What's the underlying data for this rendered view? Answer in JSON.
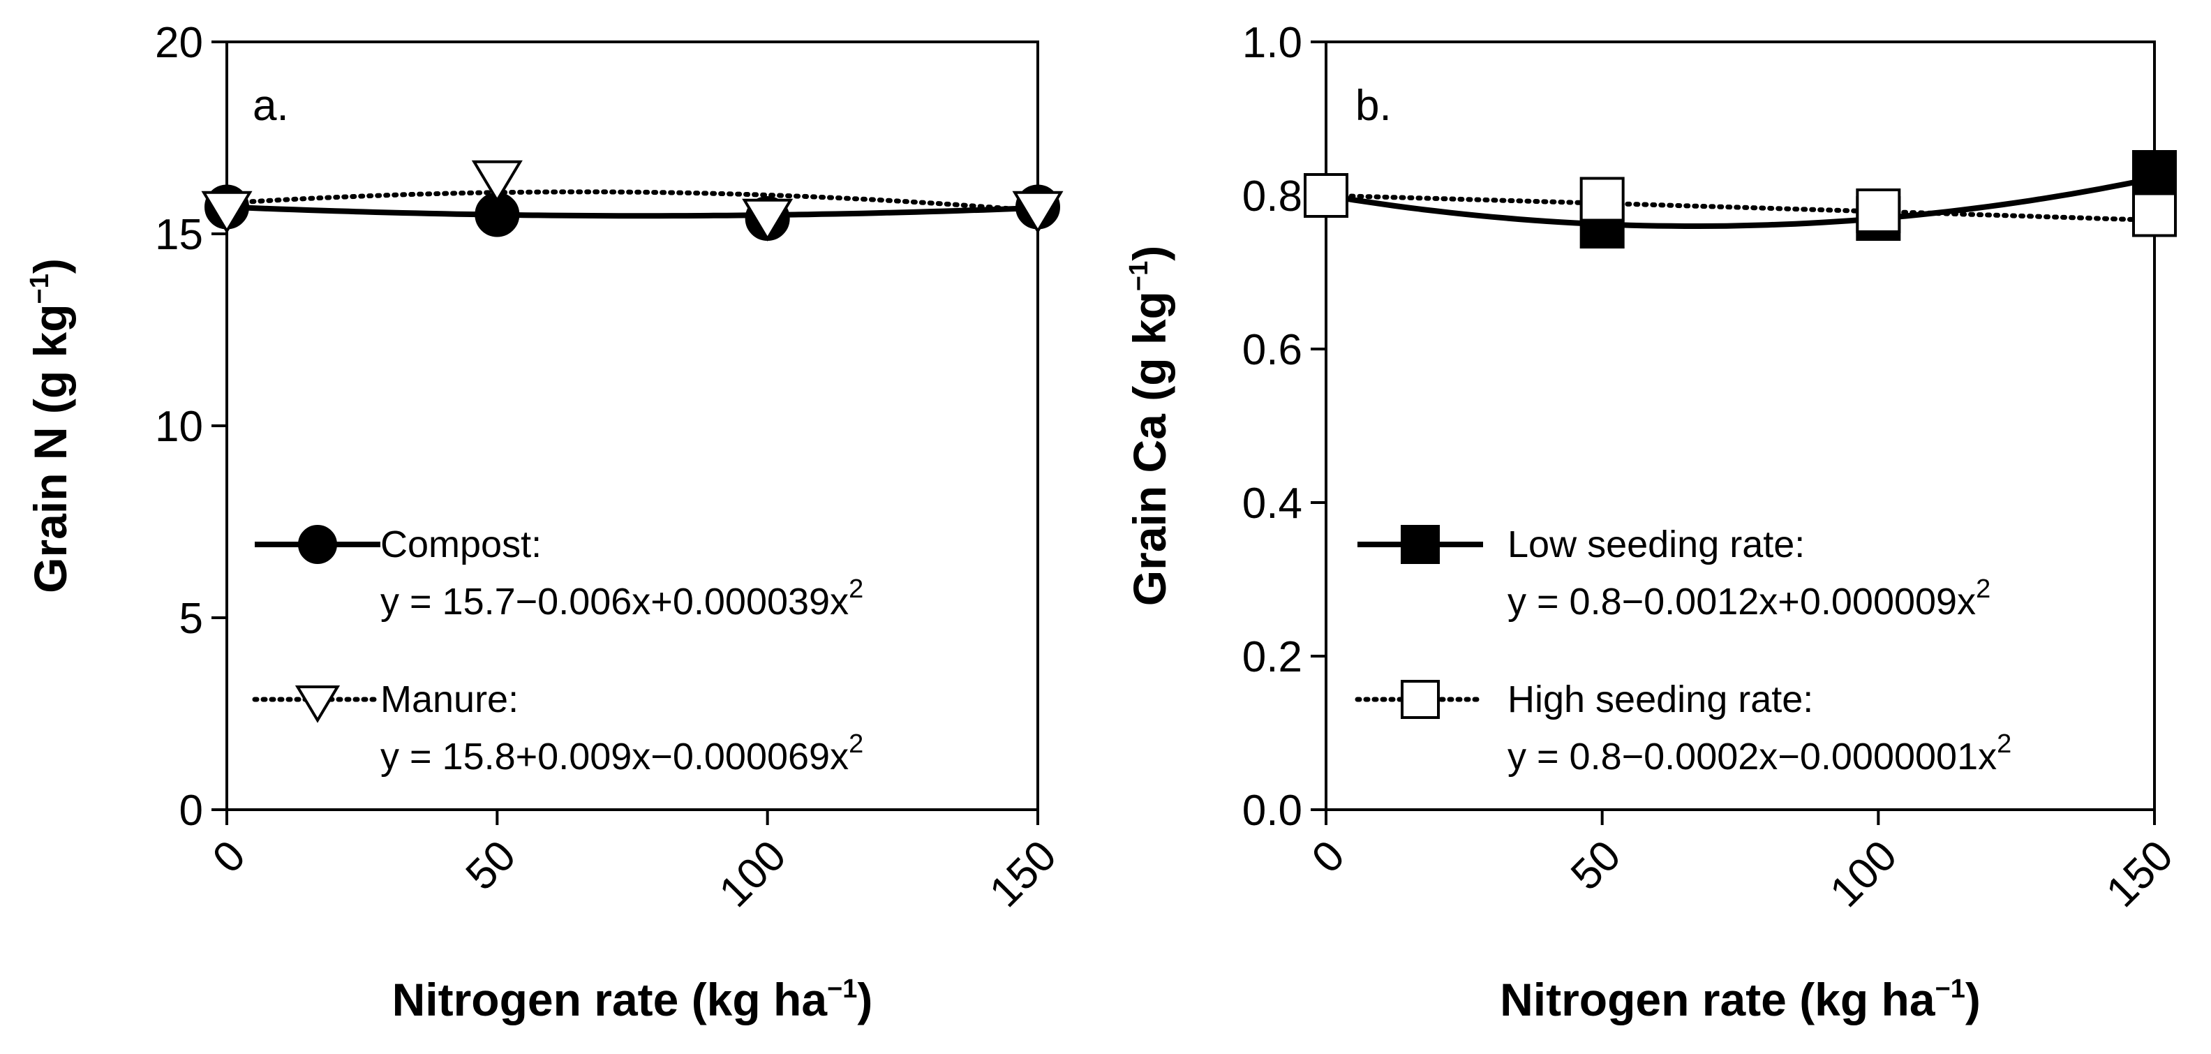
{
  "chart_data": [
    {
      "type": "line",
      "panel_label": "a.",
      "ylabel_main": "Grain N (g kg",
      "ylabel_sup": "−1",
      "ylabel_close": ")",
      "xlabel_main": "Nitrogen rate (kg ha",
      "xlabel_sup": "−1",
      "xlabel_close": ")",
      "xlim": [
        0,
        150
      ],
      "ylim": [
        0,
        20
      ],
      "xticks": [
        "0",
        "50",
        "100",
        "150"
      ],
      "yticks": [
        "0",
        "5",
        "10",
        "15",
        "20"
      ],
      "x": [
        0,
        50,
        100,
        150
      ],
      "series": [
        {
          "name": "Compost:",
          "equation": "y = 15.7−0.006x+0.000039x",
          "equation_sup": "2",
          "values": [
            15.7,
            15.5,
            15.4,
            15.7
          ],
          "fit": [
            15.7,
            -0.006,
            3.9e-05
          ],
          "marker": "circle",
          "filled": true,
          "line_style": "solid"
        },
        {
          "name": "Manure:",
          "equation": "y = 15.8+0.009x−0.000069x",
          "equation_sup": "2",
          "values": [
            15.7,
            16.5,
            15.5,
            15.7
          ],
          "fit": [
            15.8,
            0.009,
            -6.9e-05
          ],
          "marker": "triangle-down",
          "filled": false,
          "line_style": "dotted"
        }
      ],
      "legend_position": "lower-left"
    },
    {
      "type": "line",
      "panel_label": "b.",
      "ylabel_main": "Grain Ca (g kg",
      "ylabel_sup": "−1",
      "ylabel_close": ")",
      "xlabel_main": "Nitrogen rate (kg ha",
      "xlabel_sup": "−1",
      "xlabel_close": ")",
      "xlim": [
        0,
        150
      ],
      "ylim": [
        0,
        1.0
      ],
      "xticks": [
        "0",
        "50",
        "100",
        "150"
      ],
      "yticks": [
        "0.0",
        "0.2",
        "0.4",
        "0.6",
        "0.8",
        "1.0"
      ],
      "x": [
        0,
        50,
        100,
        150
      ],
      "series": [
        {
          "name": "Low seeding rate:",
          "equation": "y = 0.8−0.0012x+0.000009x",
          "equation_sup": "2",
          "values": [
            0.8,
            0.76,
            0.77,
            0.83
          ],
          "fit": [
            0.8,
            -0.0012,
            9e-06
          ],
          "marker": "square",
          "filled": true,
          "line_style": "solid"
        },
        {
          "name": "High seeding rate:",
          "equation": "y = 0.8−0.0002x−0.0000001x",
          "equation_sup": "2",
          "values": [
            0.8,
            0.795,
            0.78,
            0.775
          ],
          "fit": [
            0.8,
            -0.0002,
            -1e-07
          ],
          "marker": "square",
          "filled": false,
          "line_style": "dotted"
        }
      ],
      "legend_position": "lower-left"
    }
  ]
}
